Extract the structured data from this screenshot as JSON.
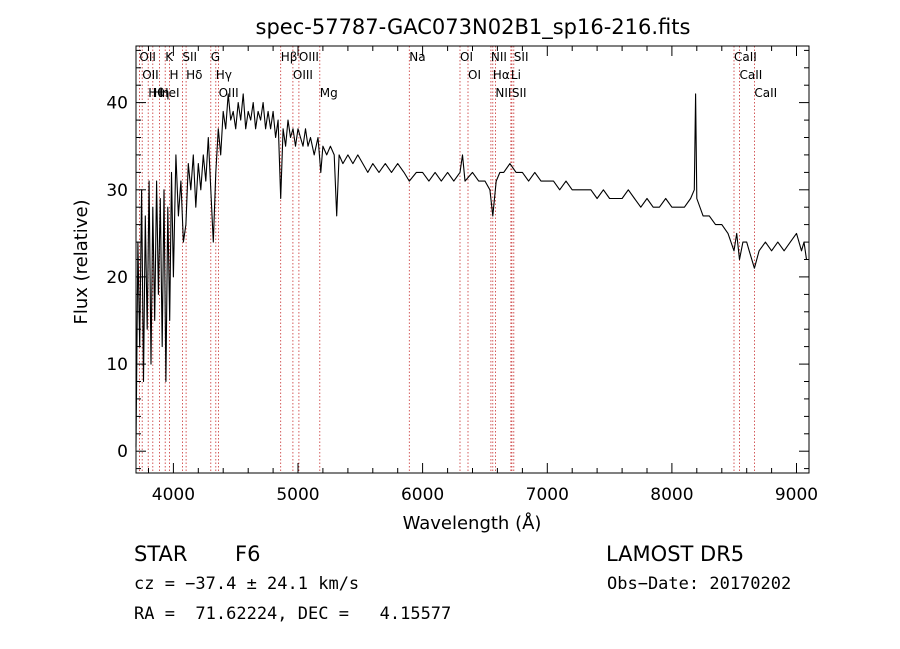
{
  "chart_data": {
    "type": "line",
    "title": "spec-57787-GAC073N02B1_sp16-216.fits",
    "xlabel": "Wavelength (Å)",
    "ylabel": "Flux (relative)",
    "xlim": [
      3700,
      9100
    ],
    "ylim": [
      -2.5,
      46.5
    ],
    "xticks": [
      4000,
      5000,
      6000,
      7000,
      8000,
      9000
    ],
    "xtick_labels": [
      "4000",
      "5000",
      "6000",
      "7000",
      "8000",
      "9000"
    ],
    "yticks": [
      0,
      10,
      20,
      30,
      40
    ],
    "ytick_labels": [
      "0",
      "10",
      "20",
      "30",
      "40"
    ],
    "grid": false,
    "series": [
      {
        "color": "#000000",
        "points": [
          [
            3700,
            0.5
          ],
          [
            3715,
            24
          ],
          [
            3730,
            12
          ],
          [
            3745,
            30
          ],
          [
            3760,
            8
          ],
          [
            3775,
            27
          ],
          [
            3790,
            14
          ],
          [
            3805,
            31
          ],
          [
            3820,
            10
          ],
          [
            3835,
            28
          ],
          [
            3850,
            15
          ],
          [
            3865,
            31
          ],
          [
            3880,
            18
          ],
          [
            3895,
            29
          ],
          [
            3910,
            12
          ],
          [
            3925,
            30
          ],
          [
            3940,
            8
          ],
          [
            3955,
            28
          ],
          [
            3970,
            15
          ],
          [
            3985,
            32
          ],
          [
            4000,
            20
          ],
          [
            4020,
            34
          ],
          [
            4040,
            27
          ],
          [
            4060,
            31
          ],
          [
            4080,
            24
          ],
          [
            4100,
            26
          ],
          [
            4120,
            33
          ],
          [
            4140,
            30
          ],
          [
            4160,
            34
          ],
          [
            4180,
            28
          ],
          [
            4200,
            33
          ],
          [
            4220,
            30
          ],
          [
            4240,
            34
          ],
          [
            4260,
            31
          ],
          [
            4280,
            36
          ],
          [
            4300,
            30
          ],
          [
            4320,
            24
          ],
          [
            4340,
            32
          ],
          [
            4360,
            37
          ],
          [
            4380,
            34
          ],
          [
            4400,
            39
          ],
          [
            4420,
            37
          ],
          [
            4440,
            41
          ],
          [
            4460,
            38
          ],
          [
            4480,
            39
          ],
          [
            4500,
            37
          ],
          [
            4520,
            40
          ],
          [
            4540,
            38
          ],
          [
            4560,
            41
          ],
          [
            4580,
            37
          ],
          [
            4600,
            39
          ],
          [
            4620,
            38
          ],
          [
            4640,
            40
          ],
          [
            4660,
            37
          ],
          [
            4680,
            39
          ],
          [
            4700,
            38
          ],
          [
            4720,
            40
          ],
          [
            4740,
            37
          ],
          [
            4760,
            39
          ],
          [
            4780,
            37
          ],
          [
            4800,
            39
          ],
          [
            4820,
            36
          ],
          [
            4840,
            38
          ],
          [
            4861,
            29
          ],
          [
            4880,
            37
          ],
          [
            4900,
            35
          ],
          [
            4920,
            38
          ],
          [
            4940,
            36
          ],
          [
            4960,
            37
          ],
          [
            4980,
            35
          ],
          [
            5000,
            37
          ],
          [
            5020,
            36
          ],
          [
            5040,
            35
          ],
          [
            5060,
            37
          ],
          [
            5080,
            35
          ],
          [
            5100,
            36
          ],
          [
            5130,
            34
          ],
          [
            5160,
            36
          ],
          [
            5183,
            32
          ],
          [
            5200,
            35
          ],
          [
            5230,
            34
          ],
          [
            5260,
            35
          ],
          [
            5290,
            34
          ],
          [
            5310,
            27
          ],
          [
            5330,
            34
          ],
          [
            5360,
            33
          ],
          [
            5400,
            34
          ],
          [
            5440,
            33
          ],
          [
            5480,
            34
          ],
          [
            5520,
            33
          ],
          [
            5560,
            32
          ],
          [
            5600,
            33
          ],
          [
            5650,
            32
          ],
          [
            5700,
            33
          ],
          [
            5750,
            32
          ],
          [
            5800,
            33
          ],
          [
            5850,
            32
          ],
          [
            5893,
            31
          ],
          [
            5950,
            32
          ],
          [
            6000,
            32
          ],
          [
            6050,
            31
          ],
          [
            6100,
            32
          ],
          [
            6150,
            31
          ],
          [
            6200,
            32
          ],
          [
            6250,
            31
          ],
          [
            6300,
            32
          ],
          [
            6320,
            34
          ],
          [
            6340,
            31
          ],
          [
            6400,
            32
          ],
          [
            6450,
            31
          ],
          [
            6500,
            31
          ],
          [
            6540,
            30
          ],
          [
            6563,
            27
          ],
          [
            6590,
            31
          ],
          [
            6620,
            32
          ],
          [
            6650,
            32
          ],
          [
            6700,
            33
          ],
          [
            6750,
            32
          ],
          [
            6800,
            32
          ],
          [
            6850,
            31
          ],
          [
            6900,
            32
          ],
          [
            6950,
            31
          ],
          [
            7000,
            31
          ],
          [
            7050,
            31
          ],
          [
            7100,
            30
          ],
          [
            7150,
            31
          ],
          [
            7200,
            30
          ],
          [
            7250,
            30
          ],
          [
            7300,
            30
          ],
          [
            7350,
            30
          ],
          [
            7400,
            29
          ],
          [
            7450,
            30
          ],
          [
            7500,
            29
          ],
          [
            7550,
            29
          ],
          [
            7600,
            29
          ],
          [
            7650,
            30
          ],
          [
            7700,
            29
          ],
          [
            7750,
            28
          ],
          [
            7800,
            29
          ],
          [
            7850,
            28
          ],
          [
            7900,
            28
          ],
          [
            7950,
            29
          ],
          [
            8000,
            28
          ],
          [
            8050,
            28
          ],
          [
            8100,
            28
          ],
          [
            8150,
            29
          ],
          [
            8180,
            30
          ],
          [
            8190,
            41
          ],
          [
            8200,
            29
          ],
          [
            8250,
            27
          ],
          [
            8300,
            27
          ],
          [
            8350,
            26
          ],
          [
            8400,
            26
          ],
          [
            8450,
            25
          ],
          [
            8498,
            23
          ],
          [
            8520,
            25
          ],
          [
            8542,
            22
          ],
          [
            8570,
            24
          ],
          [
            8600,
            24
          ],
          [
            8620,
            23
          ],
          [
            8662,
            21
          ],
          [
            8700,
            23
          ],
          [
            8750,
            24
          ],
          [
            8800,
            23
          ],
          [
            8850,
            24
          ],
          [
            8900,
            23
          ],
          [
            8950,
            24
          ],
          [
            9000,
            25
          ],
          [
            9040,
            23
          ],
          [
            9060,
            24
          ],
          [
            9080,
            22
          ]
        ]
      }
    ],
    "lines": [
      {
        "wavelength": 3727,
        "label": "OII"
      },
      {
        "wavelength": 3750,
        "label": "OII"
      },
      {
        "wavelength": 3798,
        "label": "Hθ"
      },
      {
        "wavelength": 3835,
        "label": "Hη"
      },
      {
        "wavelength": 3889,
        "label": "HeI"
      },
      {
        "wavelength": 3934,
        "label": "K"
      },
      {
        "wavelength": 3969,
        "label": "H"
      },
      {
        "wavelength": 4072,
        "label": "SII"
      },
      {
        "wavelength": 4102,
        "label": "Hδ"
      },
      {
        "wavelength": 4300,
        "label": "G"
      },
      {
        "wavelength": 4340,
        "label": "Hγ"
      },
      {
        "wavelength": 4363,
        "label": "OIII"
      },
      {
        "wavelength": 4861,
        "label": "Hβ"
      },
      {
        "wavelength": 4959,
        "label": "OIII"
      },
      {
        "wavelength": 5007,
        "label": "OIII"
      },
      {
        "wavelength": 5175,
        "label": "Mg"
      },
      {
        "wavelength": 5893,
        "label": "Na"
      },
      {
        "wavelength": 6300,
        "label": "OI"
      },
      {
        "wavelength": 6364,
        "label": "OI"
      },
      {
        "wavelength": 6548,
        "label": "NII"
      },
      {
        "wavelength": 6563,
        "label": "Hα"
      },
      {
        "wavelength": 6584,
        "label": "NII"
      },
      {
        "wavelength": 6708,
        "label": "Li"
      },
      {
        "wavelength": 6716,
        "label": "SII"
      },
      {
        "wavelength": 6731,
        "label": "SII"
      },
      {
        "wavelength": 8498,
        "label": "CaII"
      },
      {
        "wavelength": 8542,
        "label": "CaII"
      },
      {
        "wavelength": 8662,
        "label": "CaII"
      }
    ],
    "line_color": "#c83232"
  },
  "info": {
    "class": "STAR",
    "subclass": "F6",
    "survey": "LAMOST DR5",
    "cz": "cz = −37.4 ± 24.1 km/s",
    "obs_date": "Obs−Date: 20170202",
    "coords": "RA =  71.62224, DEC =   4.15577"
  }
}
